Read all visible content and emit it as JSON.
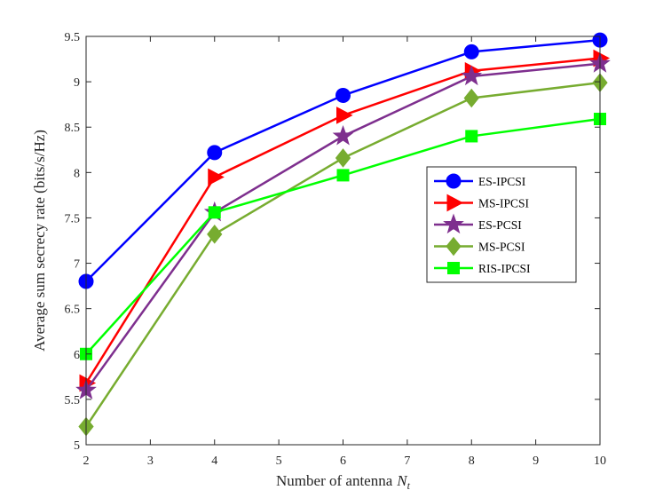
{
  "chart_data": {
    "type": "line",
    "title": "",
    "xlabel": "Number of antenna",
    "xlabel_symbol": "N",
    "xlabel_subscript": "t",
    "ylabel": "Average sum secrecy rate (bits/s/Hz)",
    "xlim": [
      2,
      10
    ],
    "ylim": [
      5,
      9.5
    ],
    "x": [
      2,
      4,
      6,
      8,
      10
    ],
    "xticks": [
      "2",
      "3",
      "4",
      "5",
      "6",
      "7",
      "8",
      "9",
      "10"
    ],
    "yticks": [
      "5",
      "5.5",
      "6",
      "6.5",
      "7",
      "7.5",
      "8",
      "8.5",
      "9",
      "9.5"
    ],
    "grid": false,
    "legend_position": "center-right",
    "series": [
      {
        "name": "ES-IPCSI",
        "color": "#0000ff",
        "marker": "circle",
        "values": [
          6.8,
          8.22,
          8.85,
          9.33,
          9.46
        ]
      },
      {
        "name": "MS-IPCSI",
        "color": "#ff0000",
        "marker": "triangle-right",
        "values": [
          5.68,
          7.95,
          8.63,
          9.12,
          9.26
        ]
      },
      {
        "name": "ES-PCSI",
        "color": "#7e2f8e",
        "marker": "star",
        "values": [
          5.6,
          7.56,
          8.4,
          9.06,
          9.2
        ]
      },
      {
        "name": "MS-PCSI",
        "color": "#77ac30",
        "marker": "diamond",
        "values": [
          5.2,
          7.32,
          8.16,
          8.82,
          8.99
        ]
      },
      {
        "name": "RIS-IPCSI",
        "color": "#00ff00",
        "marker": "square",
        "values": [
          6.0,
          7.56,
          7.97,
          8.4,
          8.59
        ]
      }
    ]
  }
}
